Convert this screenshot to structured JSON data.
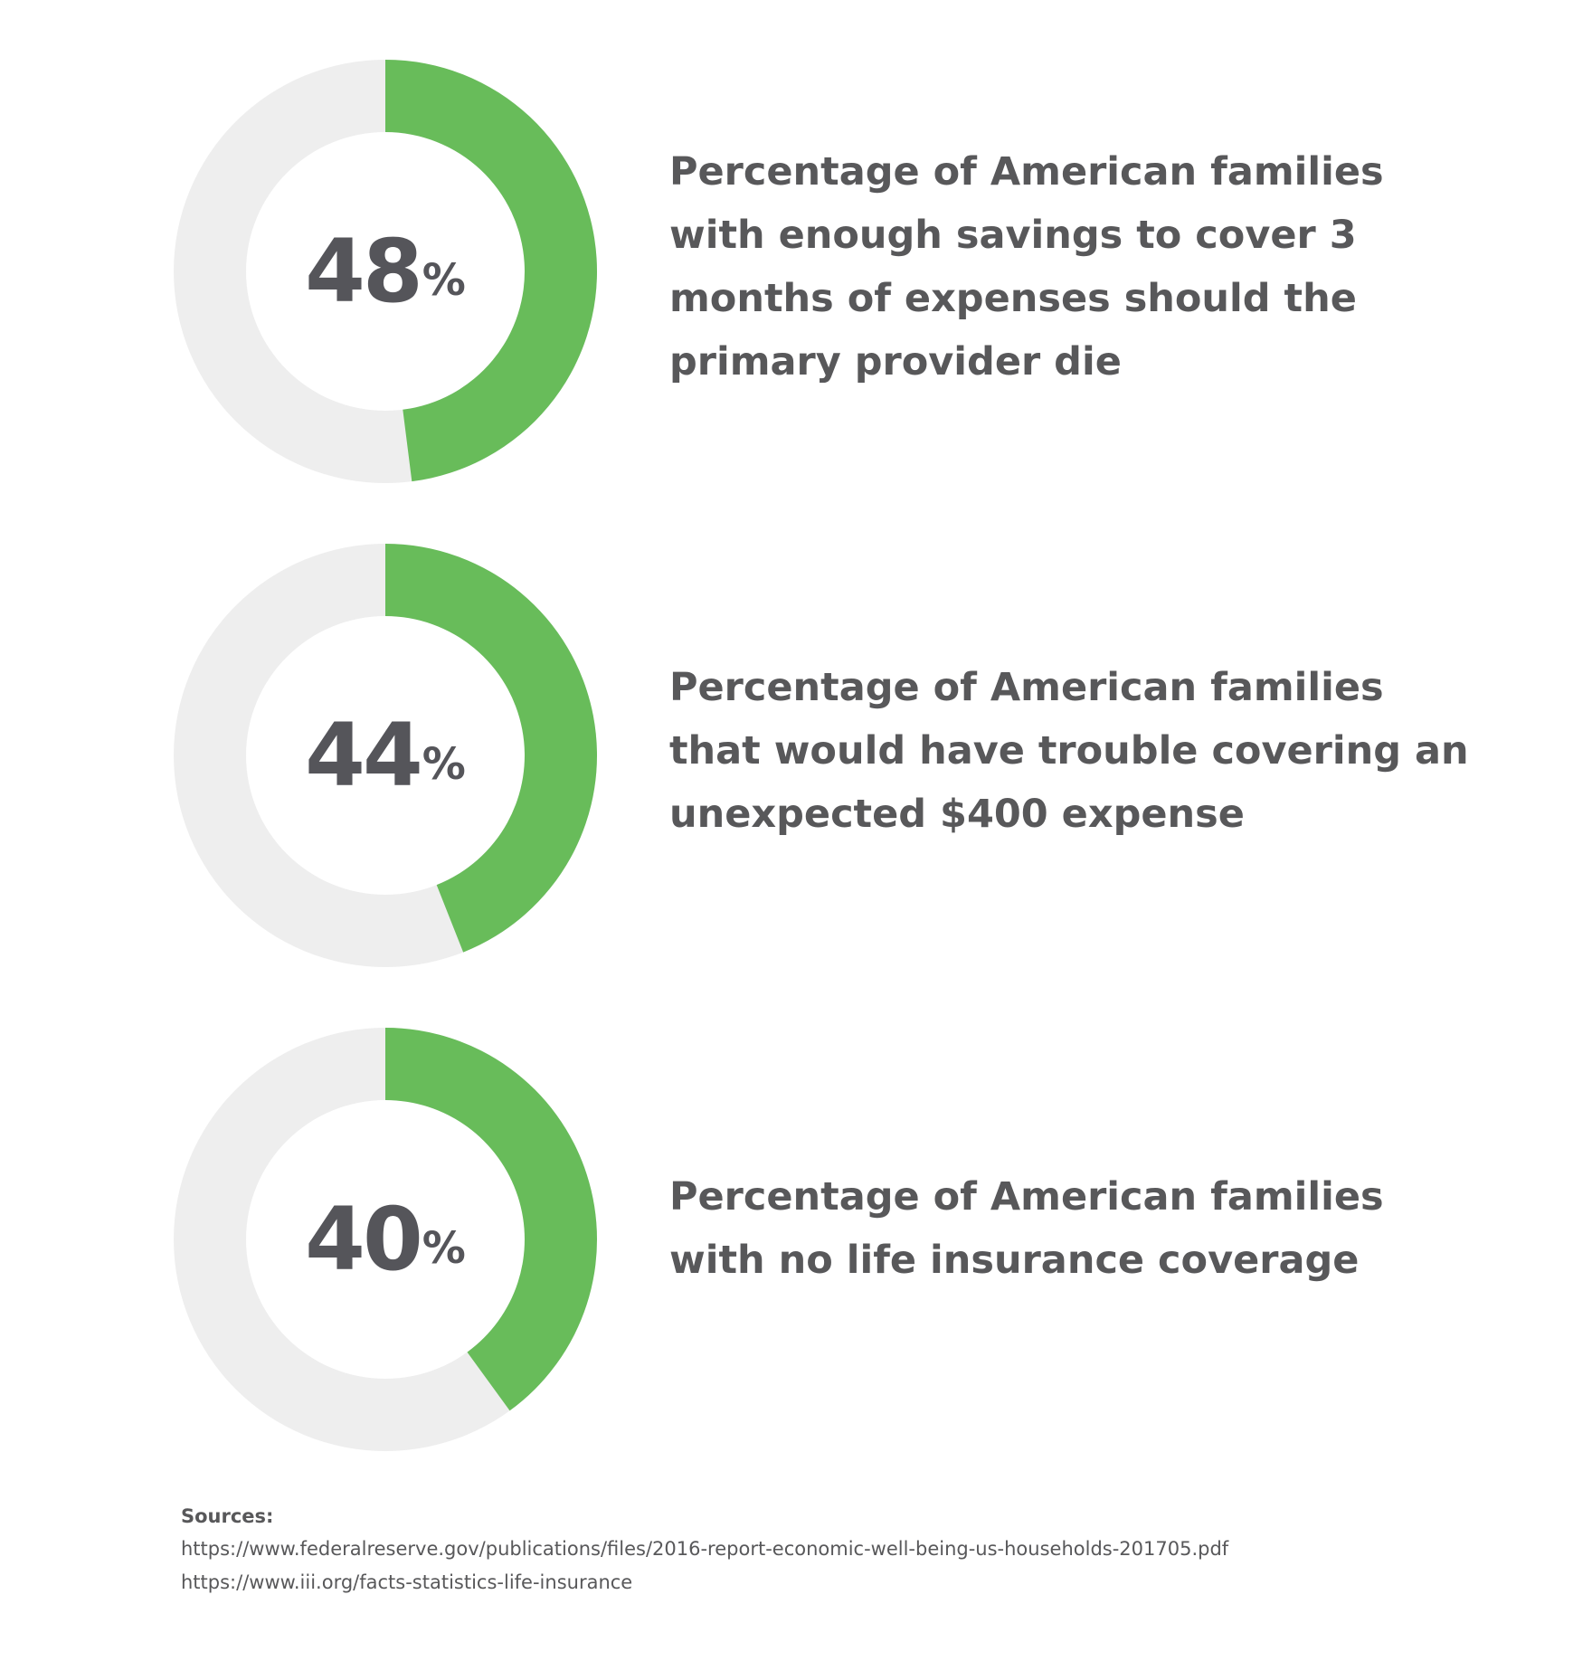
{
  "colors": {
    "filled": "#68bc5a",
    "track": "#eeeeee",
    "text": "#58585a"
  },
  "chart_data": [
    {
      "type": "pie",
      "values": [
        48,
        52
      ],
      "percent_label": "48",
      "percent_sign": "%",
      "description_lines": [
        "Percentage of American families",
        "with enough savings to cover 3",
        "months of expenses should the",
        "primary provider die"
      ]
    },
    {
      "type": "pie",
      "values": [
        44,
        56
      ],
      "percent_label": "44",
      "percent_sign": "%",
      "description_lines": [
        "Percentage of American families",
        "that would have trouble covering an",
        "unexpected $400 expense"
      ]
    },
    {
      "type": "pie",
      "values": [
        40,
        60
      ],
      "percent_label": "40",
      "percent_sign": "%",
      "description_lines": [
        "Percentage of American families",
        "with no life insurance coverage"
      ]
    }
  ],
  "sources": {
    "title": "Sources:",
    "links": [
      "https://www.federalreserve.gov/publications/files/2016-report-economic-well-being-us-households-201705.pdf",
      "https://www.iii.org/facts-statistics-life-insurance"
    ]
  }
}
